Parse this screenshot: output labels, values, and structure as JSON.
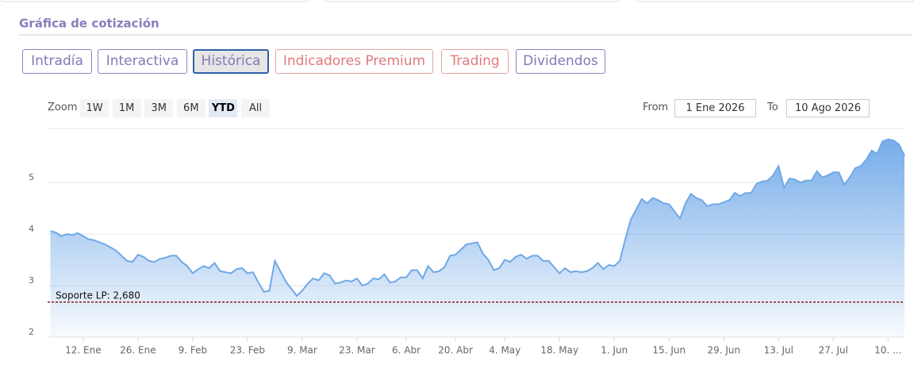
{
  "title": "Gráfica de cotización",
  "tabs": [
    "Intradía",
    "Interactiva",
    "Histórica",
    "Indicadores Premium",
    "Trading",
    "Dividendos"
  ],
  "range_selector": {
    "label": "Zoom",
    "buttons": [
      "1W",
      "1M",
      "3M",
      "6M",
      "YTD",
      "All"
    ]
  },
  "date_inputs": {
    "from_label": "From",
    "from": "1 Ene 2026",
    "to_label": "To",
    "to": "10 Ago 2026"
  },
  "chart_data": {
    "type": "area",
    "color": "#6fa8e8",
    "x": [
      0,
      1,
      2,
      3,
      4,
      5,
      6,
      7,
      8,
      9,
      10,
      11,
      12,
      13,
      14,
      15,
      16,
      17,
      18,
      19,
      20,
      21,
      22,
      23,
      24,
      25,
      26,
      27,
      28,
      29,
      30,
      31,
      32,
      33,
      34,
      35,
      36,
      37,
      38,
      39,
      40,
      41,
      42,
      43,
      44,
      45,
      46,
      47,
      48,
      49,
      50,
      51,
      52,
      53,
      54,
      55,
      56,
      57,
      58,
      59,
      60,
      61,
      62,
      63,
      64,
      65,
      66,
      67,
      68,
      69,
      70,
      71,
      72,
      73,
      74,
      75,
      76,
      77,
      78,
      79,
      80,
      81,
      82,
      83,
      84,
      85,
      86,
      87,
      88,
      89,
      90,
      91,
      92,
      93,
      94,
      95,
      96,
      97,
      98,
      99,
      100,
      101,
      102,
      103,
      104,
      105,
      106,
      107,
      108,
      109,
      110,
      111,
      112,
      113,
      114,
      115,
      116,
      117,
      118,
      119,
      120,
      121,
      122,
      123,
      124,
      125,
      126,
      127,
      128,
      129,
      130,
      131,
      132,
      133,
      134,
      135,
      136,
      137,
      138,
      139,
      140,
      141,
      142,
      143,
      144,
      145,
      146,
      147,
      148,
      149,
      150,
      151,
      152,
      153,
      154,
      155,
      156
    ],
    "values": [
      4.06,
      4.03,
      3.96,
      4.0,
      3.98,
      4.02,
      3.96,
      3.9,
      3.88,
      3.84,
      3.8,
      3.74,
      3.68,
      3.58,
      3.48,
      3.46,
      3.6,
      3.56,
      3.48,
      3.46,
      3.52,
      3.54,
      3.58,
      3.58,
      3.46,
      3.38,
      3.24,
      3.32,
      3.38,
      3.34,
      3.44,
      3.28,
      3.26,
      3.24,
      3.32,
      3.34,
      3.24,
      3.26,
      3.06,
      2.88,
      2.9,
      3.48,
      3.28,
      3.08,
      2.94,
      2.8,
      2.9,
      3.04,
      3.14,
      3.1,
      3.24,
      3.2,
      3.04,
      3.06,
      3.1,
      3.08,
      3.14,
      3.0,
      3.04,
      3.14,
      3.12,
      3.22,
      3.06,
      3.08,
      3.16,
      3.16,
      3.3,
      3.3,
      3.14,
      3.38,
      3.26,
      3.28,
      3.36,
      3.58,
      3.6,
      3.7,
      3.8,
      3.82,
      3.84,
      3.62,
      3.5,
      3.3,
      3.34,
      3.5,
      3.46,
      3.56,
      3.6,
      3.52,
      3.58,
      3.58,
      3.48,
      3.48,
      3.36,
      3.24,
      3.34,
      3.26,
      3.28,
      3.26,
      3.28,
      3.34,
      3.44,
      3.32,
      3.4,
      3.38,
      3.48,
      3.9,
      4.28,
      4.48,
      4.68,
      4.6,
      4.7,
      4.66,
      4.6,
      4.58,
      4.44,
      4.3,
      4.6,
      4.78,
      4.7,
      4.66,
      4.54,
      4.58,
      4.58,
      4.62,
      4.66,
      4.8,
      4.74,
      4.8,
      4.8,
      4.98,
      5.02,
      5.04,
      5.14,
      5.32,
      4.9,
      5.08,
      5.06,
      5.0,
      5.04,
      5.04,
      5.22,
      5.1,
      5.14,
      5.2,
      5.2,
      4.96,
      5.1,
      5.28,
      5.32,
      5.44,
      5.62,
      5.56,
      5.8,
      5.84,
      5.82,
      5.74,
      5.52
    ],
    "xlim": [
      -0.5,
      156
    ],
    "xticks": [
      {
        "value": 6,
        "label": "12. Ene"
      },
      {
        "value": 16,
        "label": "26. Ene"
      },
      {
        "value": 26,
        "label": "9. Feb"
      },
      {
        "value": 36,
        "label": "23. Feb"
      },
      {
        "value": 46,
        "label": "9. Mar"
      },
      {
        "value": 56,
        "label": "23. Mar"
      },
      {
        "value": 65,
        "label": "6. Abr"
      },
      {
        "value": 74,
        "label": "20. Abr"
      },
      {
        "value": 83,
        "label": "4. May"
      },
      {
        "value": 93,
        "label": "18. May"
      },
      {
        "value": 103,
        "label": "1. Jun"
      },
      {
        "value": 113,
        "label": "15. Jun"
      },
      {
        "value": 123,
        "label": "29. Jun"
      },
      {
        "value": 133,
        "label": "13. Jul"
      },
      {
        "value": 143,
        "label": "27. Jul"
      },
      {
        "value": 153,
        "label": "10. ..."
      }
    ],
    "ylim": [
      2,
      6.05
    ],
    "yticks": [
      2,
      3,
      4,
      5
    ],
    "grid": true,
    "annotations": [
      {
        "label": "Soporte LP: 2,680",
        "value": 2.68,
        "color": "#8b1a1a"
      }
    ]
  }
}
